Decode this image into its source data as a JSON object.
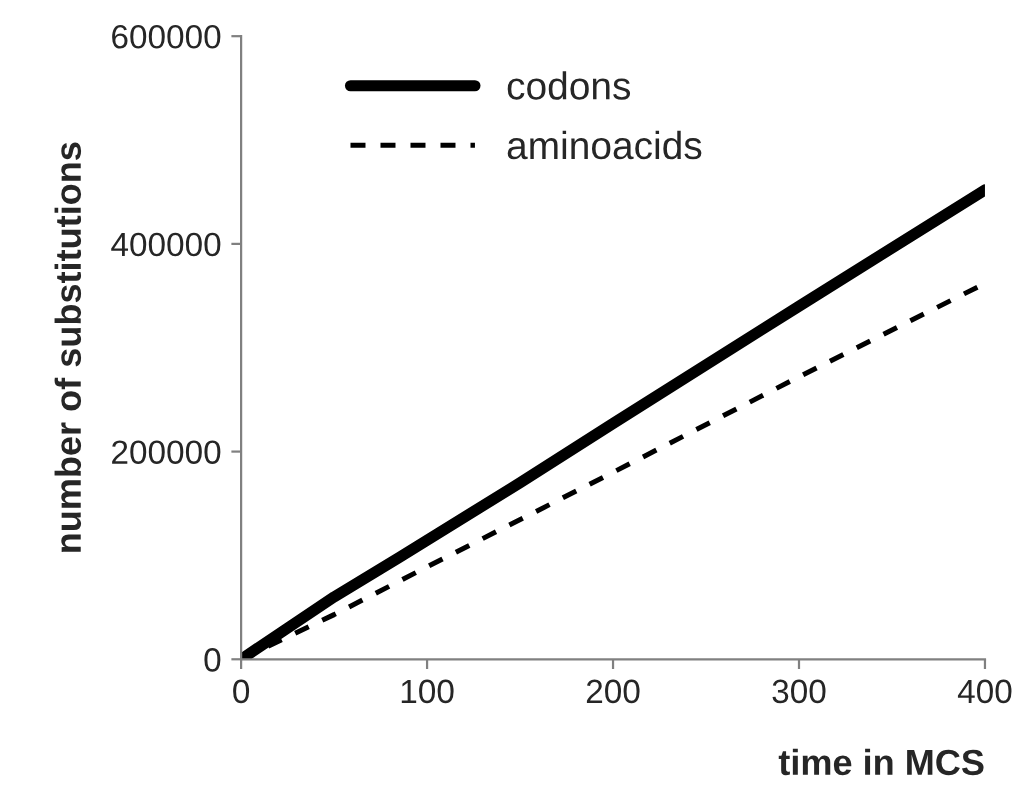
{
  "chart_data": {
    "type": "line",
    "xlabel": "time in MCS",
    "ylabel": "number of substitutions",
    "xlim": [
      0,
      400
    ],
    "xticks": [
      0,
      100,
      200,
      300,
      400
    ],
    "ylim": [
      0,
      600000
    ],
    "yticks": [
      0,
      200000,
      400000,
      600000
    ],
    "grid": false,
    "legend": "top left",
    "marker": "none",
    "series": [
      {
        "name": "codons",
        "color": "#000000",
        "line_style": "solid",
        "x": [
          0,
          50,
          85,
          150,
          200,
          300,
          400
        ],
        "values": [
          0,
          60000,
          98000,
          170000,
          227000,
          340000,
          452000
        ]
      },
      {
        "name": "aminoacids",
        "color": "#000000",
        "line_style": "dashed",
        "x": [
          0,
          50,
          100,
          200,
          300,
          400
        ],
        "values": [
          0,
          43000,
          89000,
          180000,
          272000,
          362000
        ]
      }
    ]
  }
}
